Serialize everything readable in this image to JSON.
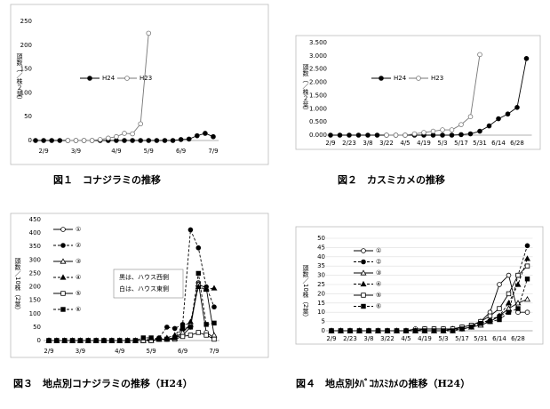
{
  "chart_data": [
    {
      "type": "line",
      "title": "図１　コナジラミの推移",
      "y_label": "頭数（／株２葉）",
      "categories": [
        null,
        "2/9",
        null,
        null,
        null,
        "3/9",
        null,
        null,
        null,
        null,
        "4/9",
        null,
        null,
        null,
        "5/9",
        null,
        null,
        null,
        "6/9",
        null,
        null,
        null,
        "7/9"
      ],
      "ylim": [
        0,
        250
      ],
      "yticks": [
        0,
        50,
        100,
        150,
        200,
        250
      ],
      "grid": false,
      "legend": "top-left",
      "series": [
        {
          "name": "H24",
          "color": "#000000",
          "marker": "circle",
          "filled": true,
          "dashed": false,
          "values": [
            0,
            0,
            0,
            0,
            0,
            0,
            0,
            0,
            0,
            0,
            0,
            0,
            0,
            0,
            0,
            0,
            0,
            0,
            2,
            3,
            10,
            15,
            8
          ]
        },
        {
          "name": "H23",
          "color": "#777777",
          "marker": "circle",
          "filled": false,
          "dashed": false,
          "values": [
            null,
            null,
            null,
            null,
            0,
            0,
            0,
            0,
            2,
            5,
            8,
            15,
            14,
            35,
            225,
            null,
            null,
            null,
            null,
            null,
            null,
            null,
            null
          ]
        }
      ]
    },
    {
      "type": "line",
      "title": "図２　カスミカメの推移",
      "y_label": "頭数（／株２葉）",
      "categories": [
        "2/9",
        null,
        "2/23",
        null,
        "3/8",
        null,
        "3/22",
        null,
        "4/5",
        null,
        "4/19",
        null,
        "5/3",
        null,
        "5/17",
        null,
        "5/31",
        null,
        "6/14",
        null,
        "6/28",
        null
      ],
      "ylim": [
        0,
        3.5
      ],
      "yticks": [
        {
          "value": 0,
          "label": "0.000"
        },
        {
          "value": 0.5,
          "label": "0.500"
        },
        {
          "value": 1,
          "label": "1.000"
        },
        {
          "value": 1.5,
          "label": "1.500"
        },
        {
          "value": 2,
          "label": "2.000"
        },
        {
          "value": 2.5,
          "label": "2.500"
        },
        {
          "value": 3,
          "label": "3.000"
        },
        {
          "value": 3.5,
          "label": "3.500"
        }
      ],
      "grid": false,
      "legend": "top-left",
      "series": [
        {
          "name": "H24",
          "color": "#000000",
          "marker": "circle",
          "filled": true,
          "dashed": false,
          "values": [
            0,
            0,
            0,
            0,
            0,
            0,
            0,
            0,
            0,
            0,
            0,
            0,
            0,
            0,
            0.02,
            0.05,
            0.15,
            0.35,
            0.62,
            0.8,
            1.05,
            2.9
          ]
        },
        {
          "name": "H23",
          "color": "#777777",
          "marker": "circle",
          "filled": false,
          "dashed": false,
          "values": [
            null,
            null,
            null,
            null,
            null,
            null,
            0,
            0,
            0,
            0.05,
            0.1,
            0.15,
            0.2,
            0.2,
            0.4,
            0.7,
            3.05,
            null,
            null,
            null,
            null,
            null
          ]
        }
      ]
    },
    {
      "type": "line",
      "title": "図３　地点別コナジラミの推移（H24）",
      "y_label": "頭数／10株（2葉）",
      "categories": [
        "2/9",
        null,
        null,
        null,
        "3/9",
        null,
        null,
        null,
        null,
        "4/9",
        null,
        null,
        null,
        "5/9",
        null,
        null,
        null,
        "6/9",
        null,
        null,
        null,
        "7/9"
      ],
      "ylim": [
        0,
        450
      ],
      "yticks": [
        0,
        50,
        100,
        150,
        200,
        250,
        300,
        350,
        400,
        450
      ],
      "grid": false,
      "legend": "top-left",
      "annotations": [
        "黒は、ハウス西側",
        "白は、ハウス東側"
      ],
      "series": [
        {
          "name": "①",
          "color": "#000000",
          "marker": "circle",
          "filled": false,
          "dashed": false,
          "values": [
            0,
            0,
            0,
            0,
            0,
            0,
            0,
            0,
            0,
            0,
            0,
            0,
            0,
            0,
            5,
            5,
            10,
            20,
            50,
            215,
            30,
            10
          ]
        },
        {
          "name": "②",
          "color": "#000000",
          "marker": "circle",
          "filled": true,
          "dashed": true,
          "values": [
            0,
            0,
            0,
            0,
            0,
            0,
            0,
            0,
            0,
            0,
            0,
            0,
            0,
            5,
            10,
            50,
            45,
            60,
            412,
            345,
            200,
            125
          ]
        },
        {
          "name": "③",
          "color": "#000000",
          "marker": "triangle",
          "filled": false,
          "dashed": false,
          "values": [
            0,
            0,
            0,
            0,
            0,
            0,
            0,
            0,
            0,
            0,
            0,
            0,
            0,
            0,
            5,
            5,
            10,
            30,
            60,
            210,
            195,
            20
          ]
        },
        {
          "name": "④",
          "color": "#000000",
          "marker": "triangle",
          "filled": true,
          "dashed": true,
          "values": [
            0,
            0,
            0,
            0,
            0,
            0,
            0,
            0,
            0,
            0,
            0,
            0,
            0,
            5,
            5,
            10,
            20,
            50,
            70,
            200,
            190,
            195
          ]
        },
        {
          "name": "⑤",
          "color": "#000000",
          "marker": "square",
          "filled": false,
          "dashed": false,
          "values": [
            0,
            0,
            0,
            0,
            0,
            0,
            0,
            0,
            0,
            0,
            0,
            0,
            0,
            0,
            5,
            5,
            5,
            15,
            20,
            30,
            20,
            5
          ]
        },
        {
          "name": "⑥",
          "color": "#000000",
          "marker": "square",
          "filled": true,
          "dashed": true,
          "values": [
            0,
            0,
            0,
            0,
            0,
            0,
            0,
            0,
            0,
            0,
            0,
            0,
            10,
            10,
            5,
            5,
            10,
            45,
            50,
            250,
            60,
            65
          ]
        }
      ]
    },
    {
      "type": "line",
      "title": "図４　地点別ﾀﾊﾞｺｶｽﾐｶﾒの推移（H24）",
      "y_label": "頭数／10株（2葉）",
      "categories": [
        "2/9",
        null,
        "2/23",
        null,
        "3/8",
        null,
        "3/22",
        null,
        "4/5",
        null,
        "4/19",
        null,
        "5/3",
        null,
        "5/17",
        null,
        "5/31",
        null,
        "6/14",
        null,
        "6/28",
        null
      ],
      "ylim": [
        0,
        50
      ],
      "yticks": [
        0,
        5,
        10,
        15,
        20,
        25,
        30,
        35,
        40,
        45,
        50
      ],
      "grid": true,
      "legend": "top-left",
      "series": [
        {
          "name": "①",
          "color": "#000000",
          "marker": "circle",
          "filled": false,
          "dashed": false,
          "values": [
            0,
            0,
            0,
            0,
            0,
            0,
            0,
            0,
            0,
            1,
            1,
            1,
            1,
            1,
            2,
            3,
            5,
            10,
            25,
            30,
            10,
            10
          ]
        },
        {
          "name": "②",
          "color": "#000000",
          "marker": "circle",
          "filled": true,
          "dashed": true,
          "values": [
            0,
            0,
            0,
            0,
            0,
            0,
            0,
            0,
            0,
            0,
            0,
            0,
            0,
            0,
            1,
            2,
            5,
            5,
            8,
            10,
            30,
            46
          ]
        },
        {
          "name": "③",
          "color": "#000000",
          "marker": "triangle",
          "filled": false,
          "dashed": false,
          "values": [
            0,
            0,
            0,
            0,
            0,
            0,
            0,
            0,
            0,
            0,
            0,
            0,
            0,
            1,
            1,
            2,
            3,
            5,
            8,
            12,
            15,
            17
          ]
        },
        {
          "name": "④",
          "color": "#000000",
          "marker": "triangle",
          "filled": true,
          "dashed": true,
          "values": [
            0,
            0,
            0,
            0,
            0,
            0,
            0,
            0,
            0,
            0,
            0,
            0,
            0,
            0,
            1,
            2,
            4,
            6,
            8,
            15,
            25,
            39
          ]
        },
        {
          "name": "⑤",
          "color": "#000000",
          "marker": "square",
          "filled": false,
          "dashed": false,
          "values": [
            0,
            0,
            0,
            0,
            0,
            0,
            0,
            0,
            0,
            0,
            1,
            1,
            1,
            1,
            2,
            3,
            5,
            8,
            12,
            20,
            30,
            35
          ]
        },
        {
          "name": "⑥",
          "color": "#000000",
          "marker": "square",
          "filled": true,
          "dashed": true,
          "values": [
            0,
            0,
            0,
            0,
            0,
            0,
            0,
            0,
            0,
            0,
            0,
            0,
            0,
            0,
            1,
            2,
            4,
            5,
            6,
            10,
            12,
            28
          ]
        }
      ]
    }
  ]
}
